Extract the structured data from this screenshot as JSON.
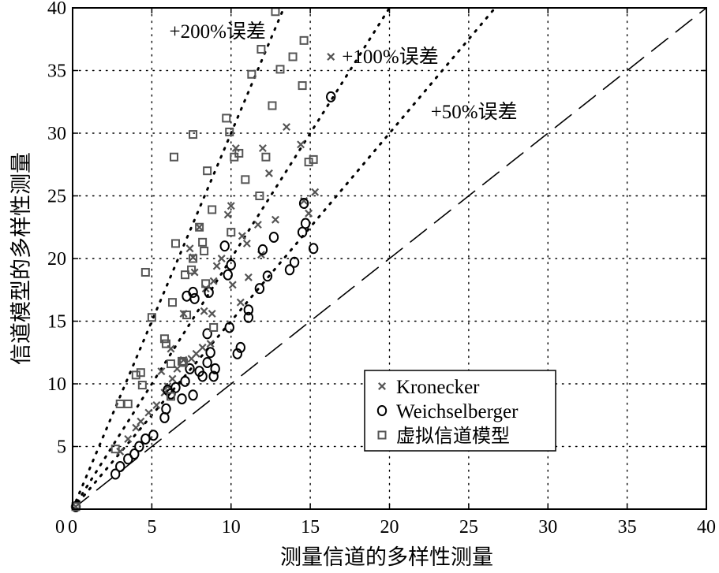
{
  "chart_data": {
    "type": "scatter",
    "title": "",
    "xlabel": "测量信道的多样性测量",
    "ylabel": "信道模型的多样性测量",
    "xlim": [
      0,
      40
    ],
    "ylim": [
      0,
      40
    ],
    "xticks": [
      0,
      5,
      10,
      15,
      20,
      25,
      30,
      35,
      40
    ],
    "yticks": [
      5,
      10,
      15,
      20,
      25,
      30,
      35,
      40
    ],
    "grid": true,
    "legend_position": "lower-right",
    "reference_lines": [
      {
        "label": "",
        "slope": 1.0,
        "style": "dashed"
      },
      {
        "label": "+50%误差",
        "slope": 1.5,
        "style": "dotted"
      },
      {
        "label": "+100%误差",
        "slope": 2.0,
        "style": "dotted"
      },
      {
        "label": "+200%误差",
        "slope": 3.0,
        "style": "dotted"
      }
    ],
    "series": [
      {
        "name": "Kronecker",
        "marker": "x",
        "points": [
          [
            0.2,
            0.2
          ],
          [
            3.0,
            4.6
          ],
          [
            3.5,
            5.6
          ],
          [
            4.0,
            6.5
          ],
          [
            4.3,
            7.0
          ],
          [
            4.8,
            7.7
          ],
          [
            5.3,
            8.3
          ],
          [
            5.8,
            9.3
          ],
          [
            6.0,
            9.8
          ],
          [
            6.3,
            10.4
          ],
          [
            6.6,
            11.2
          ],
          [
            7.0,
            11.9
          ],
          [
            7.5,
            12.0
          ],
          [
            7.8,
            12.4
          ],
          [
            8.2,
            12.9
          ],
          [
            8.7,
            13.2
          ],
          [
            6.2,
            12.8
          ],
          [
            5.6,
            11.0
          ],
          [
            7.0,
            15.6
          ],
          [
            7.7,
            18.9
          ],
          [
            7.4,
            20.8
          ],
          [
            8.0,
            22.5
          ],
          [
            8.4,
            17.6
          ],
          [
            8.8,
            15.6
          ],
          [
            9.4,
            20.0
          ],
          [
            9.8,
            23.5
          ],
          [
            10.0,
            24.2
          ],
          [
            10.3,
            28.8
          ],
          [
            10.6,
            16.5
          ],
          [
            11.0,
            21.2
          ],
          [
            11.1,
            18.5
          ],
          [
            11.7,
            22.7
          ],
          [
            12.0,
            28.8
          ],
          [
            12.4,
            26.8
          ],
          [
            12.8,
            23.1
          ],
          [
            13.5,
            30.5
          ],
          [
            14.4,
            29.1
          ],
          [
            14.6,
            24.6
          ],
          [
            14.9,
            23.6
          ],
          [
            15.3,
            25.3
          ],
          [
            16.3,
            36.1
          ],
          [
            8.3,
            15.8
          ],
          [
            9.1,
            19.4
          ],
          [
            7.6,
            20.1
          ],
          [
            10.1,
            17.9
          ],
          [
            11.9,
            20.3
          ],
          [
            8.9,
            18.2
          ],
          [
            10.7,
            21.8
          ]
        ]
      },
      {
        "name": "Weichselberger",
        "marker": "o",
        "points": [
          [
            0.2,
            0.2
          ],
          [
            2.7,
            2.8
          ],
          [
            3.0,
            3.4
          ],
          [
            3.5,
            4.0
          ],
          [
            3.9,
            4.4
          ],
          [
            4.2,
            5.0
          ],
          [
            4.6,
            5.6
          ],
          [
            5.1,
            5.9
          ],
          [
            5.8,
            7.3
          ],
          [
            5.9,
            8.0
          ],
          [
            6.2,
            9.2
          ],
          [
            6.5,
            9.7
          ],
          [
            6.9,
            8.8
          ],
          [
            7.1,
            10.2
          ],
          [
            7.4,
            11.2
          ],
          [
            7.6,
            9.1
          ],
          [
            8.0,
            11.0
          ],
          [
            8.2,
            10.6
          ],
          [
            8.5,
            11.7
          ],
          [
            8.9,
            10.6
          ],
          [
            9.0,
            11.2
          ],
          [
            7.6,
            17.3
          ],
          [
            7.7,
            16.8
          ],
          [
            8.5,
            14.0
          ],
          [
            8.6,
            17.3
          ],
          [
            9.8,
            18.7
          ],
          [
            10.0,
            19.5
          ],
          [
            10.4,
            12.4
          ],
          [
            10.6,
            12.9
          ],
          [
            11.1,
            15.9
          ],
          [
            11.1,
            15.3
          ],
          [
            11.8,
            17.6
          ],
          [
            12.3,
            18.6
          ],
          [
            12.7,
            21.7
          ],
          [
            13.7,
            19.1
          ],
          [
            14.0,
            19.7
          ],
          [
            14.5,
            22.1
          ],
          [
            14.7,
            22.8
          ],
          [
            14.6,
            24.4
          ],
          [
            15.2,
            20.8
          ],
          [
            16.3,
            32.9
          ],
          [
            9.6,
            21.0
          ],
          [
            12.0,
            20.7
          ],
          [
            7.2,
            17.0
          ],
          [
            9.9,
            14.5
          ],
          [
            8.7,
            12.5
          ],
          [
            6.0,
            9.5
          ]
        ]
      },
      {
        "name": "虚拟信道模型",
        "marker": "square",
        "points": [
          [
            0.2,
            0.2
          ],
          [
            2.7,
            4.8
          ],
          [
            3.0,
            8.4
          ],
          [
            3.5,
            8.4
          ],
          [
            4.0,
            10.7
          ],
          [
            4.3,
            10.9
          ],
          [
            4.4,
            9.9
          ],
          [
            4.6,
            18.9
          ],
          [
            5.0,
            15.3
          ],
          [
            5.8,
            13.6
          ],
          [
            5.9,
            13.2
          ],
          [
            6.2,
            9.0
          ],
          [
            6.2,
            11.6
          ],
          [
            6.3,
            16.5
          ],
          [
            6.4,
            28.1
          ],
          [
            6.5,
            21.2
          ],
          [
            7.0,
            11.7
          ],
          [
            7.1,
            18.7
          ],
          [
            7.2,
            15.5
          ],
          [
            7.6,
            29.9
          ],
          [
            7.6,
            20.0
          ],
          [
            8.0,
            22.5
          ],
          [
            8.2,
            21.3
          ],
          [
            8.3,
            20.6
          ],
          [
            8.5,
            27.0
          ],
          [
            8.8,
            23.9
          ],
          [
            8.9,
            14.5
          ],
          [
            9.7,
            31.2
          ],
          [
            9.9,
            30.1
          ],
          [
            10.0,
            22.1
          ],
          [
            10.2,
            28.1
          ],
          [
            10.5,
            28.4
          ],
          [
            11.3,
            34.7
          ],
          [
            11.8,
            25.0
          ],
          [
            11.9,
            36.7
          ],
          [
            12.2,
            28.1
          ],
          [
            12.6,
            32.2
          ],
          [
            12.8,
            39.7
          ],
          [
            13.1,
            35.1
          ],
          [
            13.9,
            36.1
          ],
          [
            14.5,
            33.8
          ],
          [
            14.6,
            37.4
          ],
          [
            14.9,
            27.7
          ],
          [
            15.2,
            27.9
          ],
          [
            10.9,
            26.3
          ],
          [
            7.5,
            19.1
          ],
          [
            6.9,
            11.8
          ],
          [
            8.4,
            18.0
          ]
        ]
      }
    ]
  }
}
